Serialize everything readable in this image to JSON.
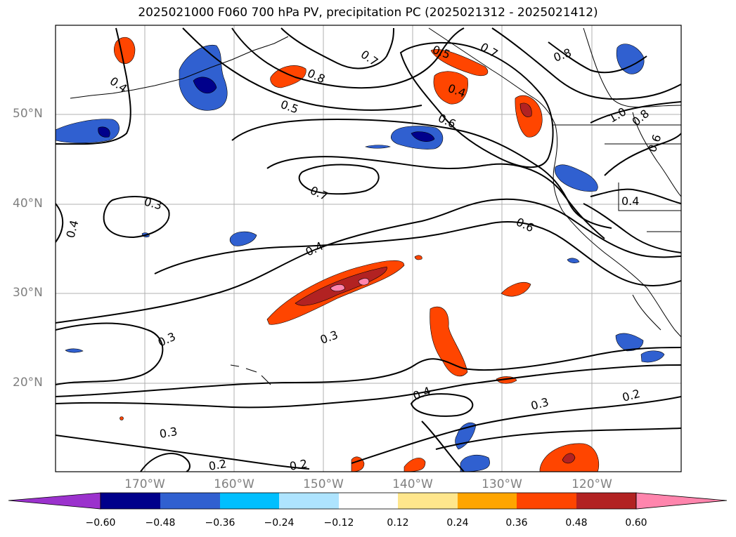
{
  "title": "2025021000 F060 700 hPa PV, precipitation PC (2025021312 - 2025021412)",
  "lat_labels": [
    "50°N",
    "40°N",
    "30°N",
    "20°N"
  ],
  "lon_labels": [
    "170°W",
    "160°W",
    "150°W",
    "140°W",
    "130°W",
    "120°W"
  ],
  "colorbar": {
    "ticks": [
      "−0.60",
      "−0.48",
      "−0.36",
      "−0.24",
      "−0.12",
      "0.12",
      "0.24",
      "0.36",
      "0.48",
      "0.60"
    ],
    "colors": [
      "#9b32cd",
      "#00008b",
      "#3060d0",
      "#00bfff",
      "#aee4ff",
      "#ffffff",
      "#ffe68c",
      "#ffa500",
      "#ff4500",
      "#b22222",
      "#ff85ad"
    ]
  },
  "contour_labels": [
    "0.4",
    "0.5",
    "0.8",
    "0.7",
    "0.5",
    "0.4",
    "0.6",
    "0.7",
    "0.8",
    "1.0",
    "0.8",
    "0.6",
    "0.3",
    "0.4",
    "0.7",
    "0.6",
    "0.4",
    "0.4",
    "0.3",
    "0.3",
    "0.4",
    "0.3",
    "0.2",
    "0.3",
    "0.2",
    "0.2"
  ]
}
